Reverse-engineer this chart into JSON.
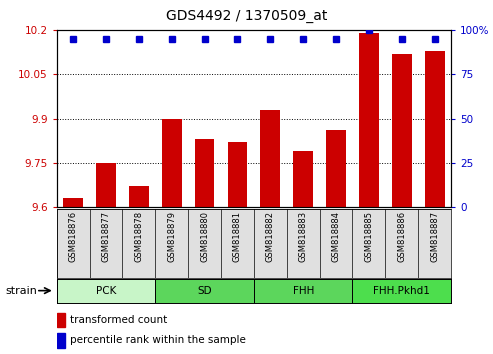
{
  "title": "GDS4492 / 1370509_at",
  "samples": [
    "GSM818876",
    "GSM818877",
    "GSM818878",
    "GSM818879",
    "GSM818880",
    "GSM818881",
    "GSM818882",
    "GSM818883",
    "GSM818884",
    "GSM818885",
    "GSM818886",
    "GSM818887"
  ],
  "transformed_count": [
    9.63,
    9.75,
    9.67,
    9.9,
    9.83,
    9.82,
    9.93,
    9.79,
    9.86,
    10.19,
    10.12,
    10.13
  ],
  "percentile_rank": [
    95,
    95,
    95,
    95,
    95,
    95,
    95,
    95,
    95,
    100,
    95,
    95
  ],
  "bar_color": "#cc0000",
  "dot_color": "#0000cc",
  "ylim_left": [
    9.6,
    10.2
  ],
  "yticks_left": [
    9.6,
    9.75,
    9.9,
    10.05,
    10.2
  ],
  "ylim_right": [
    0,
    100
  ],
  "yticks_right": [
    0,
    25,
    50,
    75,
    100
  ],
  "ylabel_left_color": "#cc0000",
  "ylabel_right_color": "#0000cc",
  "baseline": 9.6,
  "group_data": [
    {
      "label": "PCK",
      "start": 0,
      "end": 3,
      "color": "#c8f5c8"
    },
    {
      "label": "SD",
      "start": 3,
      "end": 6,
      "color": "#5cd65c"
    },
    {
      "label": "FHH",
      "start": 6,
      "end": 9,
      "color": "#5cd65c"
    },
    {
      "label": "FHH.Pkhd1",
      "start": 9,
      "end": 12,
      "color": "#4dde4d"
    }
  ],
  "legend_bar_label": "transformed count",
  "legend_dot_label": "percentile rank within the sample"
}
